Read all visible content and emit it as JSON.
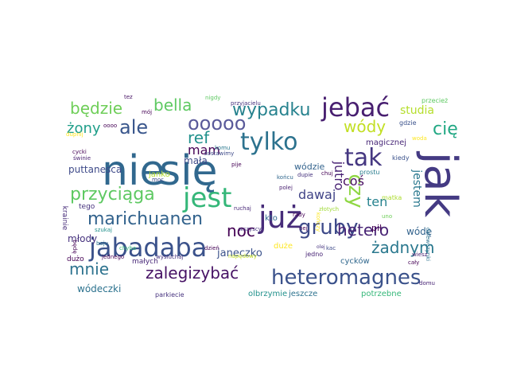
{
  "words": [
    {
      "text": "nie",
      "color": "#31688e"
    },
    {
      "text": "się",
      "color": "#31688e"
    },
    {
      "text": "jak",
      "color": "#443a83"
    },
    {
      "text": "już",
      "color": "#472c7a"
    },
    {
      "text": "jabadaba",
      "color": "#3b528b"
    },
    {
      "text": "jest",
      "color": "#35b779"
    },
    {
      "text": "jebać",
      "color": "#481f70"
    },
    {
      "text": "tylko",
      "color": "#2c728e"
    },
    {
      "text": "gruby",
      "color": "#3e4a89"
    },
    {
      "text": "heteromagnes",
      "color": "#3b528b"
    },
    {
      "text": "przyciąga",
      "color": "#5ec962"
    },
    {
      "text": "marichuanen",
      "color": "#33638d"
    },
    {
      "text": "tak",
      "color": "#453781"
    },
    {
      "text": "czy",
      "color": "#8fd744"
    },
    {
      "text": "ale",
      "color": "#39568c"
    },
    {
      "text": "wypadku",
      "color": "#26828e"
    },
    {
      "text": "ooooo",
      "color": "#5a5a9a"
    },
    {
      "text": "bella",
      "color": "#5ec962"
    },
    {
      "text": "będzie",
      "color": "#6ece58"
    },
    {
      "text": "ref",
      "color": "#21918c"
    },
    {
      "text": "wódy",
      "color": "#c2df23"
    },
    {
      "text": "cię",
      "color": "#22a884"
    },
    {
      "text": "hetero",
      "color": "#482475"
    },
    {
      "text": "żadnym",
      "color": "#2a788e"
    },
    {
      "text": "zalegizybać",
      "color": "#471365"
    },
    {
      "text": "mnie",
      "color": "#2c728e"
    },
    {
      "text": "noc",
      "color": "#440154"
    },
    {
      "text": "żony",
      "color": "#1f9e89"
    },
    {
      "text": "mam",
      "color": "#440154"
    },
    {
      "text": "coś",
      "color": "#470d60"
    },
    {
      "text": "dawaj",
      "color": "#414487"
    },
    {
      "text": "ten",
      "color": "#26828e"
    },
    {
      "text": "jutro",
      "color": "#482173"
    },
    {
      "text": "jestem",
      "color": "#2a788e"
    },
    {
      "text": "puttanesca",
      "color": "#3e4a89"
    },
    {
      "text": "janeczko",
      "color": "#3b528b"
    },
    {
      "text": "mała",
      "color": "#3e4a89"
    },
    {
      "text": "wódzie",
      "color": "#33638d"
    },
    {
      "text": "młody",
      "color": "#46327e"
    },
    {
      "text": "wódę",
      "color": "#33638d"
    },
    {
      "text": "wódeczki",
      "color": "#2c728e"
    },
    {
      "text": "studia",
      "color": "#b5de2b"
    },
    {
      "text": "magicznej",
      "color": "#482878"
    },
    {
      "text": "pił",
      "color": "#440154"
    },
    {
      "text": "cycków",
      "color": "#31688e"
    },
    {
      "text": "duże",
      "color": "#fde725"
    },
    {
      "text": "janko",
      "color": "#b5de2b"
    },
    {
      "text": "kto",
      "color": "#31688e"
    },
    {
      "text": "krainie",
      "color": "#472c7a"
    },
    {
      "text": "tego",
      "color": "#46327e"
    },
    {
      "text": "małych",
      "color": "#482878"
    },
    {
      "text": "dużo",
      "color": "#440154"
    },
    {
      "text": "olbrzymie",
      "color": "#21918c"
    },
    {
      "text": "jeszcze",
      "color": "#2c728e"
    },
    {
      "text": "potrzebne",
      "color": "#35b779"
    },
    {
      "text": "parkiecie",
      "color": "#46327e"
    },
    {
      "text": "jedno",
      "color": "#482475"
    },
    {
      "text": "prostu",
      "color": "#287c8e"
    },
    {
      "text": "matka",
      "color": "#addc30"
    },
    {
      "text": "kiedy",
      "color": "#3b528b"
    },
    {
      "text": "gdzie",
      "color": "#3b528b"
    },
    {
      "text": "przecież",
      "color": "#5ec962"
    },
    {
      "text": "nigdy",
      "color": "#5ec962"
    },
    {
      "text": "przyjacielu",
      "color": "#46327e"
    },
    {
      "text": "mój",
      "color": "#440154"
    },
    {
      "text": "tez",
      "color": "#471365"
    },
    {
      "text": "komu",
      "color": "#2a788e"
    },
    {
      "text": "pije",
      "color": "#440154"
    },
    {
      "text": "końcu",
      "color": "#31688e"
    },
    {
      "text": "dupie",
      "color": "#46327e"
    },
    {
      "text": "chuj",
      "color": "#440154"
    },
    {
      "text": "woda",
      "color": "#fde725"
    },
    {
      "text": "polej",
      "color": "#481f70"
    },
    {
      "text": "rady",
      "color": "#440154"
    },
    {
      "text": "złotych",
      "color": "#a0da39"
    },
    {
      "text": "uno",
      "color": "#6ece58"
    },
    {
      "text": "kończy",
      "color": "#fde725"
    },
    {
      "text": "nej",
      "color": "#440154"
    },
    {
      "text": "dziewczynki",
      "color": "#2c728e"
    },
    {
      "text": "wiesz",
      "color": "#481f70"
    },
    {
      "text": "cały",
      "color": "#440154"
    },
    {
      "text": "kac",
      "color": "#3e4a89"
    },
    {
      "text": "olej",
      "color": "#46327e"
    },
    {
      "text": "dzień",
      "color": "#440154"
    },
    {
      "text": "wszyscy",
      "color": "#46327e"
    },
    {
      "text": "ruchaj",
      "color": "#482878"
    },
    {
      "text": "napędowy",
      "color": "#c2df23"
    },
    {
      "text": "wysłuchaj",
      "color": "#46327e"
    },
    {
      "text": "jednego",
      "color": "#440154"
    },
    {
      "text": "boju",
      "color": "#2c728e"
    },
    {
      "text": "chyba",
      "color": "#35b779"
    },
    {
      "text": "będę",
      "color": "#440154"
    },
    {
      "text": "szukaj",
      "color": "#21918c"
    },
    {
      "text": "cycki",
      "color": "#440154"
    },
    {
      "text": "świnie",
      "color": "#481f70"
    },
    {
      "text": "moc",
      "color": "#3e4a89"
    },
    {
      "text": "dupnij",
      "color": "#fde725"
    },
    {
      "text": "oooo",
      "color": "#440154"
    },
    {
      "text": "zostawimy",
      "color": "#3e4a89"
    },
    {
      "text": "domu",
      "color": "#482475"
    }
  ]
}
